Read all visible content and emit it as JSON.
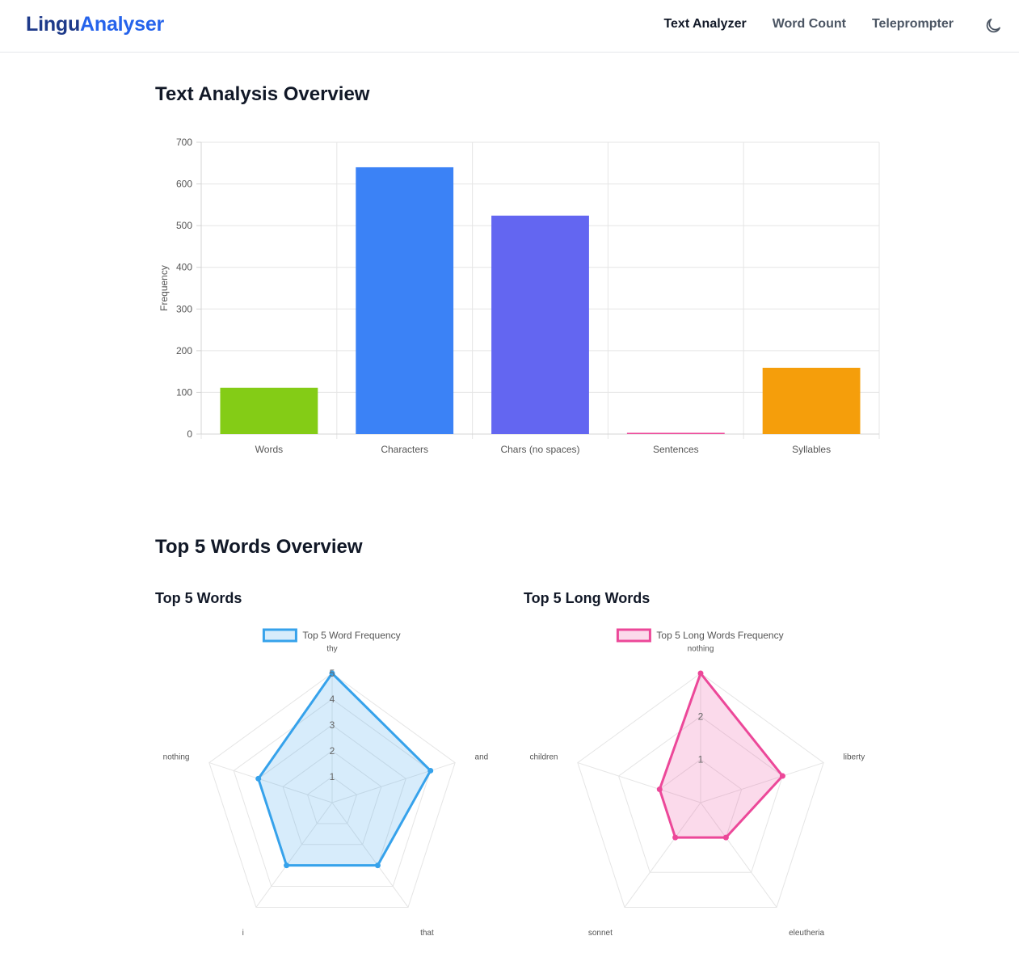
{
  "app": {
    "logo_part1": "Lingu",
    "logo_part2": "Analyser"
  },
  "nav": {
    "items": [
      {
        "label": "Text Analyzer",
        "active": true
      },
      {
        "label": "Word Count",
        "active": false
      },
      {
        "label": "Teleprompter",
        "active": false
      }
    ],
    "theme_icon": "moon-icon"
  },
  "sections": {
    "overview_title": "Text Analysis Overview",
    "top5_title": "Top 5 Words Overview",
    "top5_words_title": "Top 5 Words",
    "top5_long_title": "Top 5 Long Words"
  },
  "chart_data": [
    {
      "type": "bar",
      "ylabel": "Frequency",
      "categories": [
        "Words",
        "Characters",
        "Chars (no spaces)",
        "Sentences",
        "Syllables"
      ],
      "values": [
        111,
        640,
        524,
        3,
        159
      ],
      "colors": [
        "#84cc16",
        "#3b82f6",
        "#6366f1",
        "#ec4899",
        "#f59e0b"
      ],
      "ylim": [
        0,
        700
      ],
      "yticks": [
        0,
        100,
        200,
        300,
        400,
        500,
        600,
        700
      ],
      "grid": true
    },
    {
      "type": "radar",
      "legend": "Top 5 Word Frequency",
      "categories": [
        "thy",
        "and",
        "that",
        "i",
        "nothing"
      ],
      "values": [
        5,
        4,
        3,
        3,
        3
      ],
      "rticks": [
        1,
        2,
        3,
        4,
        5
      ],
      "rmax": 5,
      "color": "#36a2eb",
      "fill": "rgba(54,162,235,0.2)",
      "legend_position": "top"
    },
    {
      "type": "radar",
      "legend": "Top 5 Long Words Frequency",
      "categories": [
        "nothing",
        "liberty",
        "eleutheria",
        "sonnet",
        "children"
      ],
      "values": [
        3,
        2,
        1,
        1,
        1
      ],
      "rticks": [
        1,
        2
      ],
      "rmax": 3,
      "color": "#ec4899",
      "fill": "rgba(236,72,153,0.2)",
      "legend_position": "top"
    }
  ]
}
